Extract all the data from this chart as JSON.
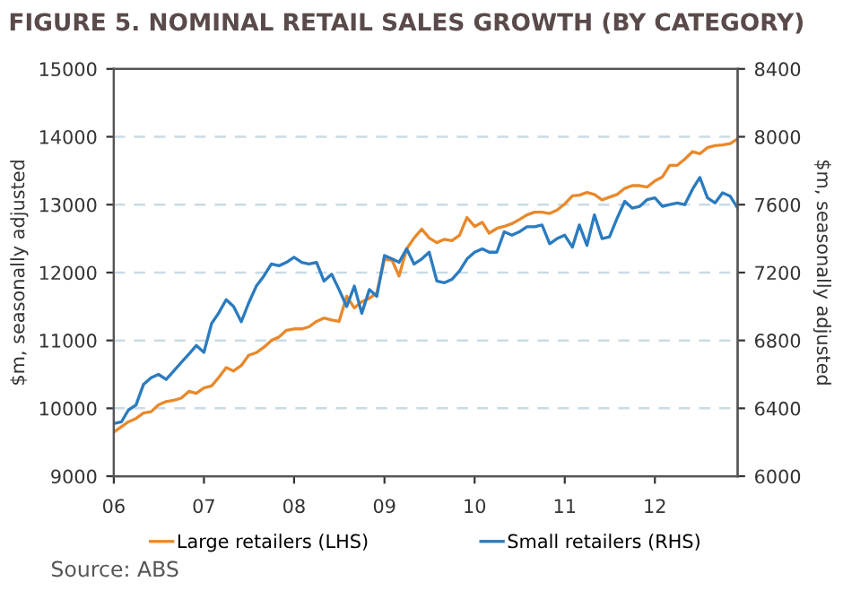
{
  "chart_data": {
    "type": "line",
    "title": "FIGURE 5. NOMINAL RETAIL SALES GROWTH (BY CATEGORY)",
    "ylabel": "$m, seasonally adjusted",
    "y2label": "$m, seasonally adjusted",
    "annotations": [
      "Source: ABS"
    ],
    "x": [
      "2006-01",
      "2006-02",
      "2006-03",
      "2006-04",
      "2006-05",
      "2006-06",
      "2006-07",
      "2006-08",
      "2006-09",
      "2006-10",
      "2006-11",
      "2006-12",
      "2007-01",
      "2007-02",
      "2007-03",
      "2007-04",
      "2007-05",
      "2007-06",
      "2007-07",
      "2007-08",
      "2007-09",
      "2007-10",
      "2007-11",
      "2007-12",
      "2008-01",
      "2008-02",
      "2008-03",
      "2008-04",
      "2008-05",
      "2008-06",
      "2008-07",
      "2008-08",
      "2008-09",
      "2008-10",
      "2008-11",
      "2008-12",
      "2009-01",
      "2009-02",
      "2009-03",
      "2009-04",
      "2009-05",
      "2009-06",
      "2009-07",
      "2009-08",
      "2009-09",
      "2009-10",
      "2009-11",
      "2009-12",
      "2010-01",
      "2010-02",
      "2010-03",
      "2010-04",
      "2010-05",
      "2010-06",
      "2010-07",
      "2010-08",
      "2010-09",
      "2010-10",
      "2010-11",
      "2010-12",
      "2011-01",
      "2011-02",
      "2011-03",
      "2011-04",
      "2011-05",
      "2011-06",
      "2011-07",
      "2011-08",
      "2011-09",
      "2011-10",
      "2011-11",
      "2011-12",
      "2012-01",
      "2012-02",
      "2012-03",
      "2012-04",
      "2012-05",
      "2012-06",
      "2012-07",
      "2012-08",
      "2012-09",
      "2012-10",
      "2012-11",
      "2012-12"
    ],
    "series": [
      {
        "name": "Large retailers (LHS)",
        "color": "#e8892b",
        "values": [
          9650,
          9730,
          9800,
          9850,
          9930,
          9950,
          10050,
          10100,
          10120,
          10150,
          10250,
          10220,
          10300,
          10330,
          10450,
          10600,
          10550,
          10630,
          10780,
          10820,
          10900,
          11000,
          11050,
          11150,
          11170,
          11170,
          11200,
          11280,
          11330,
          11300,
          11280,
          11650,
          11480,
          11570,
          11620,
          11700,
          12200,
          12180,
          11950,
          12350,
          12510,
          12640,
          12510,
          12440,
          12490,
          12470,
          12550,
          12810,
          12680,
          12740,
          12580,
          12650,
          12680,
          12720,
          12780,
          12850,
          12890,
          12890,
          12870,
          12920,
          13010,
          13130,
          13140,
          13180,
          13150,
          13070,
          13110,
          13150,
          13240,
          13280,
          13280,
          13260,
          13350,
          13410,
          13580,
          13580,
          13670,
          13780,
          13750,
          13840,
          13870,
          13880,
          13900,
          13970
        ]
      },
      {
        "name": "Small retailers (RHS)",
        "color": "#2b7bbf",
        "axis": "y2",
        "values": [
          6310,
          6320,
          6390,
          6420,
          6540,
          6580,
          6600,
          6570,
          6620,
          6670,
          6720,
          6770,
          6730,
          6900,
          6960,
          7040,
          7000,
          6910,
          7020,
          7120,
          7180,
          7250,
          7240,
          7260,
          7290,
          7260,
          7250,
          7260,
          7150,
          7190,
          7100,
          7000,
          7120,
          6960,
          7100,
          7060,
          7300,
          7280,
          7260,
          7340,
          7250,
          7280,
          7320,
          7150,
          7140,
          7160,
          7210,
          7280,
          7320,
          7340,
          7320,
          7320,
          7440,
          7420,
          7440,
          7470,
          7470,
          7480,
          7370,
          7400,
          7420,
          7350,
          7480,
          7360,
          7540,
          7400,
          7410,
          7520,
          7620,
          7580,
          7590,
          7630,
          7640,
          7590,
          7600,
          7610,
          7600,
          7690,
          7760,
          7640,
          7610,
          7670,
          7650,
          7580
        ]
      }
    ],
    "xlim": [
      "2006-01",
      "2012-12"
    ],
    "xticks": [
      {
        "value": "2006-01",
        "label": "06"
      },
      {
        "value": "2007-01",
        "label": "07"
      },
      {
        "value": "2008-01",
        "label": "08"
      },
      {
        "value": "2009-01",
        "label": "09"
      },
      {
        "value": "2010-01",
        "label": "10"
      },
      {
        "value": "2011-01",
        "label": "11"
      },
      {
        "value": "2012-01",
        "label": "12"
      }
    ],
    "ylim": [
      9000,
      15000
    ],
    "yticks": [
      9000,
      10000,
      11000,
      12000,
      13000,
      14000,
      15000
    ],
    "y2lim": [
      6000,
      8400
    ],
    "y2ticks": [
      6000,
      6400,
      6800,
      7200,
      7600,
      8000,
      8400
    ],
    "grid": "y",
    "legend": "bottom",
    "line_style": "solid",
    "marker": "none"
  }
}
